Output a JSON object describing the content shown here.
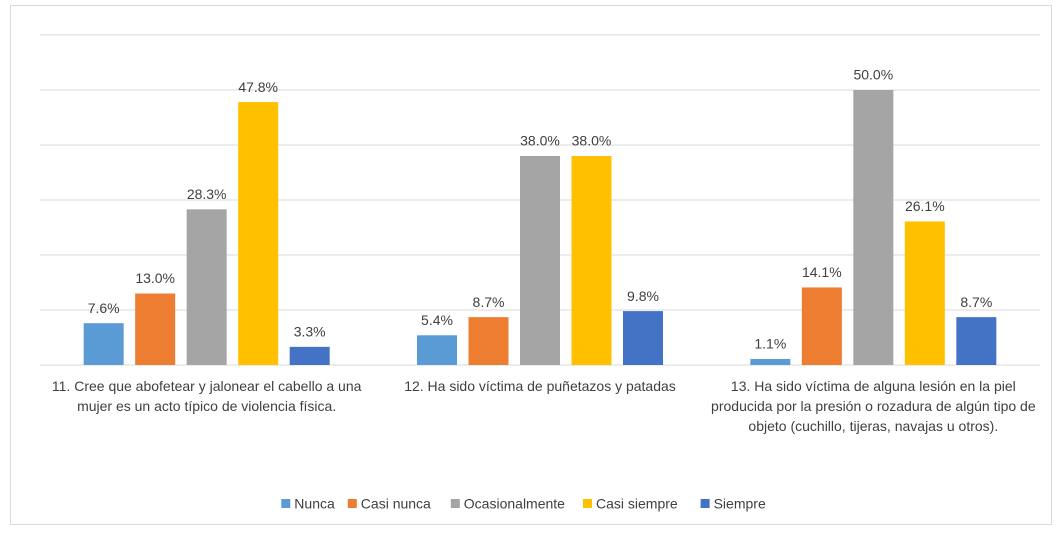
{
  "chart_data": {
    "type": "bar",
    "categories": [
      "11. Cree que abofetear y jalonear el cabello a una mujer es un acto típico de violencia física.",
      "12. Ha sido víctima de puñetazos y patadas",
      "13. Ha sido víctima de alguna lesión en la piel producida por la presión o rozadura de algún tipo de objeto (cuchillo, tijeras, navajas u otros)."
    ],
    "series": [
      {
        "name": "Nunca",
        "color": "#5b9bd5",
        "values": [
          7.6,
          5.4,
          1.1
        ],
        "value_labels": [
          "7.6%",
          "5.4%",
          "1.1%"
        ]
      },
      {
        "name": "Casi nunca",
        "color": "#ed7d31",
        "values": [
          13.0,
          8.7,
          14.1
        ],
        "value_labels": [
          "13.0%",
          "8.7%",
          "14.1%"
        ]
      },
      {
        "name": "Ocasionalmente",
        "color": "#a5a5a5",
        "values": [
          28.3,
          38.0,
          50.0
        ],
        "value_labels": [
          "28.3%",
          "38.0%",
          "50.0%"
        ]
      },
      {
        "name": "Casi siempre",
        "color": "#ffc000",
        "values": [
          47.8,
          38.0,
          26.1
        ],
        "value_labels": [
          "47.8%",
          "38.0%",
          "26.1%"
        ]
      },
      {
        "name": "Siempre",
        "color": "#4472c4",
        "values": [
          3.3,
          9.8,
          8.7
        ],
        "value_labels": [
          "3.3%",
          "9.8%",
          "8.7%"
        ]
      }
    ],
    "ylim": [
      0,
      60
    ],
    "yticks": [
      0,
      10,
      20,
      30,
      40,
      50,
      60
    ],
    "grid": true,
    "legend": "bottom"
  }
}
